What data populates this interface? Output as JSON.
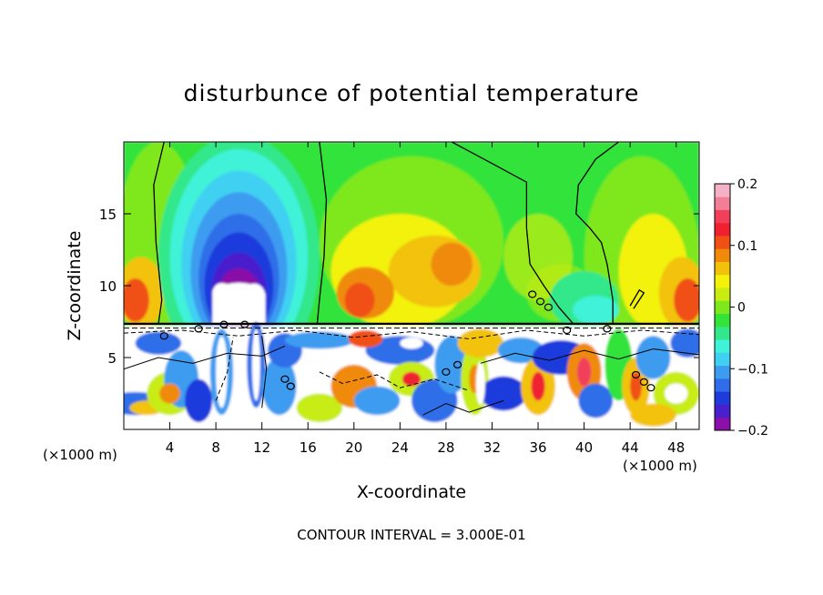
{
  "chart_data": {
    "type": "heatmap",
    "title": "disturbunce of potential temperature",
    "xlabel": "X-coordinate",
    "ylabel": "Z-coordinate",
    "x_unit_left": "(×1000 m)",
    "x_unit_right": "(×1000 m)",
    "footer": "CONTOUR INTERVAL = 3.000E-01",
    "xlim": [
      0,
      50
    ],
    "ylim": [
      0,
      20
    ],
    "x_ticks": [
      "4",
      "8",
      "12",
      "16",
      "20",
      "24",
      "28",
      "32",
      "36",
      "40",
      "44",
      "48"
    ],
    "y_ticks": [
      "5",
      "10",
      "15"
    ],
    "colorbar": {
      "range": [
        -0.2,
        0.2
      ],
      "tick_labels": [
        "0.2",
        "0.1",
        "0",
        "−0.1",
        "−0.2"
      ],
      "colors": [
        "#8b0fa8",
        "#4a1fcc",
        "#1f3bdc",
        "#2f6ee8",
        "#3d9cf0",
        "#3fd0f2",
        "#3ff2d8",
        "#33e88a",
        "#33e33a",
        "#7ee81f",
        "#c8ec12",
        "#f2f20a",
        "#f2c20a",
        "#f08a0a",
        "#f05014",
        "#f02030",
        "#f23f5a",
        "#f27f96",
        "#f5b2c6"
      ]
    }
  }
}
